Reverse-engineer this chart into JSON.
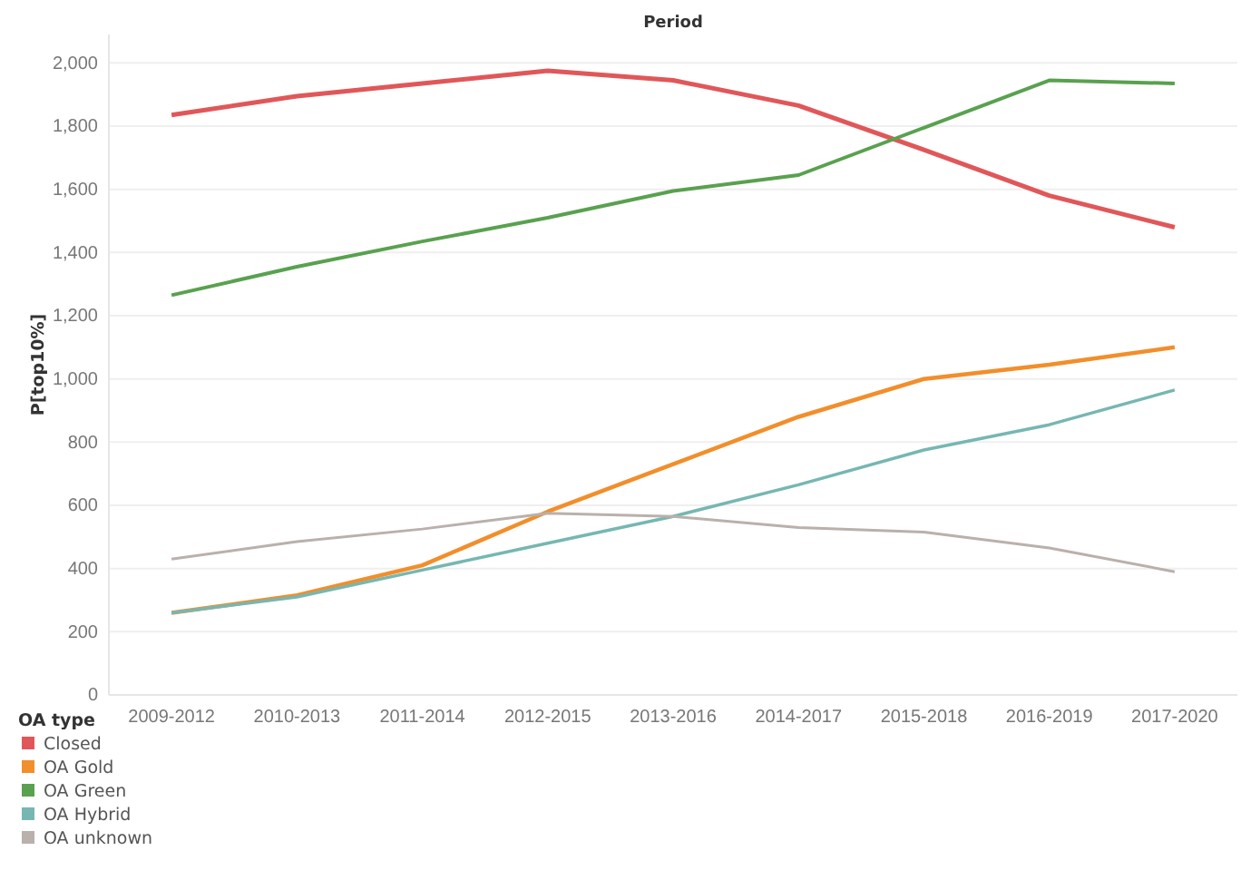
{
  "chart_data": {
    "type": "line",
    "xlabel": "Period",
    "ylabel": "P[top10%]",
    "legend_title": "OA type",
    "categories": [
      "2009-2012",
      "2010-2013",
      "2011-2014",
      "2012-2015",
      "2013-2016",
      "2014-2017",
      "2015-2018",
      "2016-2019",
      "2017-2020"
    ],
    "series": [
      {
        "name": "Closed",
        "color": "#e15759",
        "values": [
          1835,
          1895,
          1935,
          1975,
          1945,
          1865,
          1725,
          1580,
          1480
        ]
      },
      {
        "name": "OA Gold",
        "color": "#f28e2b",
        "values": [
          260,
          315,
          410,
          580,
          730,
          880,
          1000,
          1045,
          1100
        ]
      },
      {
        "name": "OA Green",
        "color": "#59a14f",
        "values": [
          1265,
          1355,
          1435,
          1510,
          1595,
          1645,
          1795,
          1945,
          1935
        ]
      },
      {
        "name": "OA Hybrid",
        "color": "#76b7b2",
        "values": [
          260,
          310,
          395,
          480,
          565,
          665,
          775,
          855,
          965
        ]
      },
      {
        "name": "OA unknown",
        "color": "#bab0ac",
        "values": [
          430,
          485,
          525,
          575,
          565,
          530,
          515,
          465,
          390
        ]
      }
    ],
    "ylim": [
      0,
      2090
    ],
    "yticks": [
      {
        "value": 0,
        "label": "0"
      },
      {
        "value": 200,
        "label": "200"
      },
      {
        "value": 400,
        "label": "400"
      },
      {
        "value": 600,
        "label": "600"
      },
      {
        "value": 800,
        "label": "800"
      },
      {
        "value": 1000,
        "label": "1,000"
      },
      {
        "value": 1200,
        "label": "1,200"
      },
      {
        "value": 1400,
        "label": "1,400"
      },
      {
        "value": 1600,
        "label": "1,600"
      },
      {
        "value": 1800,
        "label": "1,800"
      },
      {
        "value": 2000,
        "label": "2,000"
      }
    ],
    "grid": "y",
    "legend": "bottom left",
    "marker": "none",
    "line_style": "solid"
  }
}
